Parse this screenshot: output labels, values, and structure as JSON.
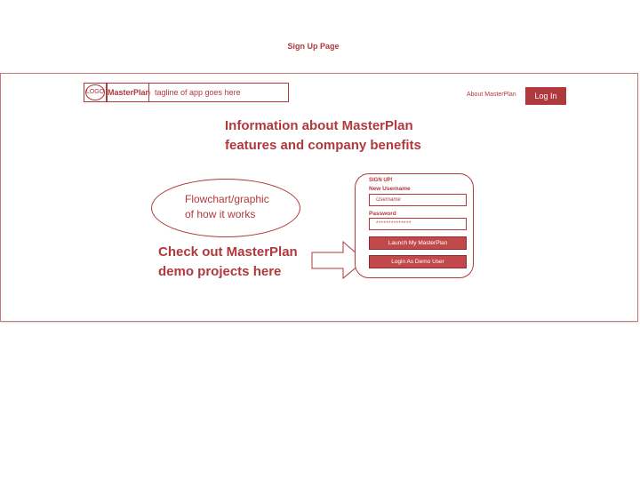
{
  "page": {
    "title": "Sign Up Page"
  },
  "header": {
    "logo_text": "LOGO",
    "brand_name": "MasterPlan",
    "tagline": "tagline of app goes here",
    "about_link": "About MasterPlan",
    "login_button": "Log In"
  },
  "main": {
    "headline_line1": "Information about MasterPlan",
    "headline_line2": "features and company benefits",
    "flowchart_line1": "Flowchart/graphic",
    "flowchart_line2": "of how it works",
    "demo_line1": "Check out MasterPlan",
    "demo_line2": "demo projects here"
  },
  "signup": {
    "heading": "SIGN UP!",
    "username_label": "New Username",
    "username_placeholder": "Username",
    "password_label": "Password",
    "password_value": "**************",
    "launch_button": "Launch My MasterPlan",
    "demo_button": "Login As Demo User"
  },
  "colors": {
    "accent": "#b0393d",
    "button": "#c1494c"
  }
}
